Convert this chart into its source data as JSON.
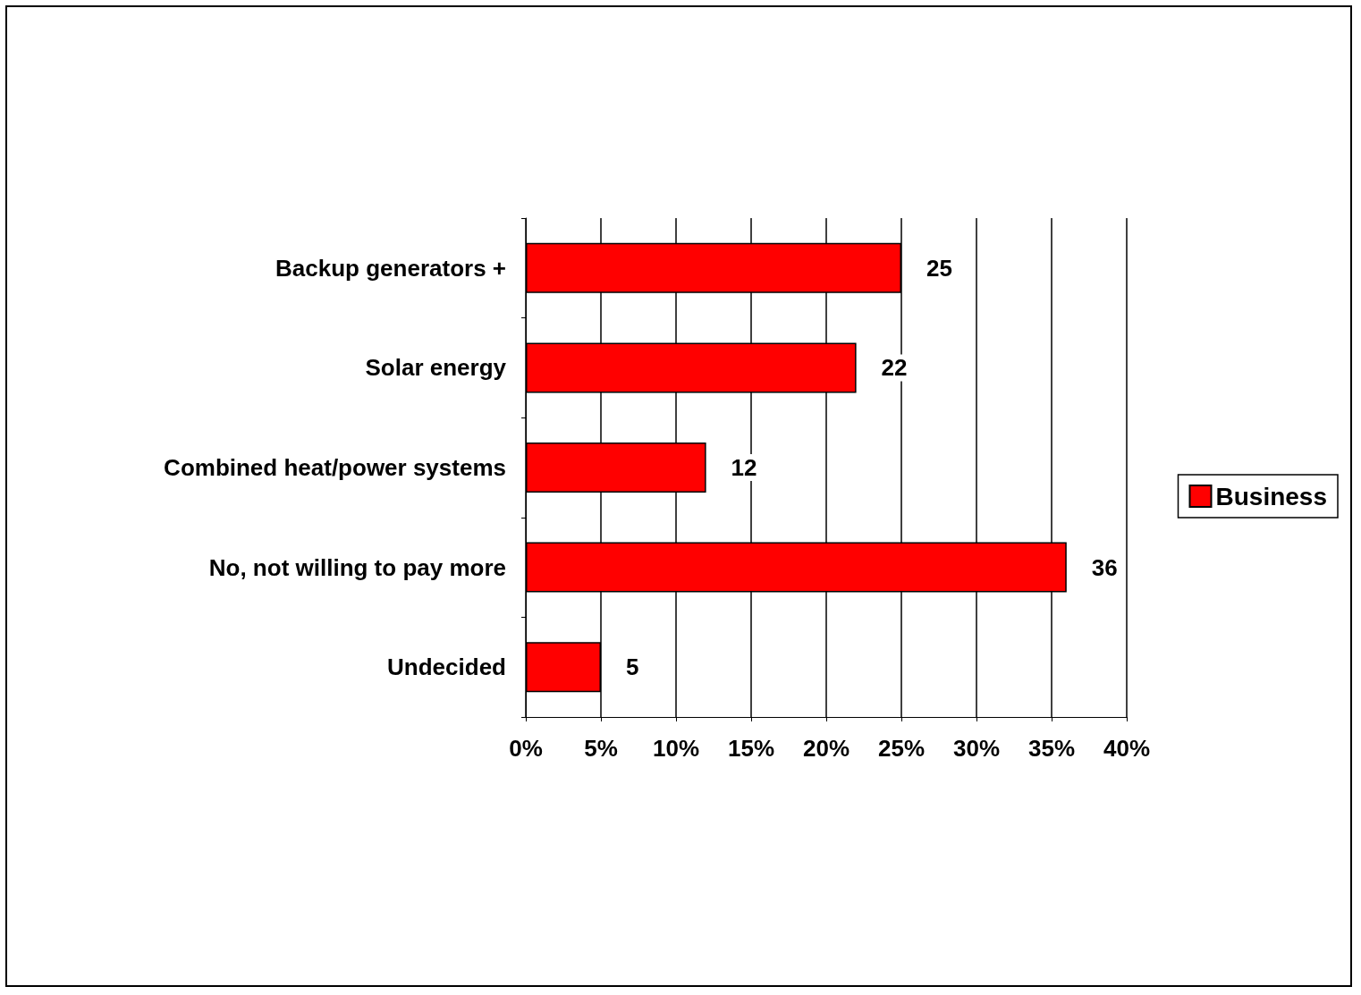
{
  "chart_data": {
    "type": "bar",
    "orientation": "horizontal",
    "categories": [
      "Backup generators +",
      "Solar energy",
      "Combined heat/power systems",
      "No, not willing to pay more",
      "Undecided"
    ],
    "series": [
      {
        "name": "Business",
        "color": "#ff0000",
        "values": [
          25,
          22,
          12,
          36,
          5
        ]
      }
    ],
    "xlim": [
      0,
      40
    ],
    "xticks": [
      {
        "value": 0,
        "label": "0%"
      },
      {
        "value": 5,
        "label": "5%"
      },
      {
        "value": 10,
        "label": "10%"
      },
      {
        "value": 15,
        "label": "15%"
      },
      {
        "value": 20,
        "label": "20%"
      },
      {
        "value": 25,
        "label": "25%"
      },
      {
        "value": 30,
        "label": "30%"
      },
      {
        "value": 35,
        "label": "35%"
      },
      {
        "value": 40,
        "label": "40%"
      }
    ],
    "data_labels": true,
    "grid": "x",
    "legend": "right"
  }
}
